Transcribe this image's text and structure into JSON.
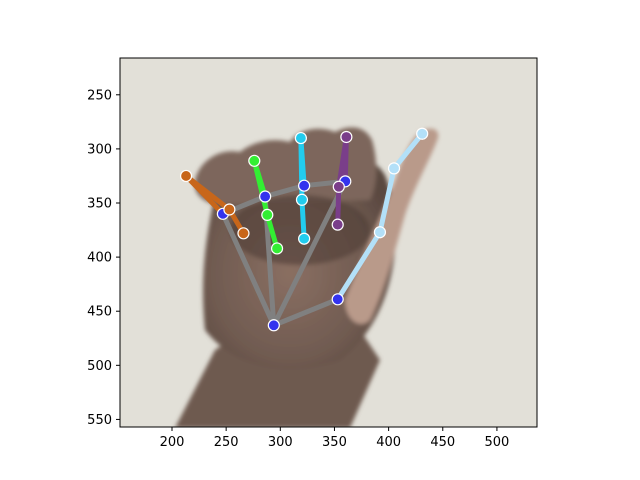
{
  "chart_data": {
    "type": "scatter",
    "title": "",
    "xlabel": "",
    "ylabel": "",
    "xlim": [
      152,
      537
    ],
    "ylim": [
      557,
      216
    ],
    "y_inverted": true,
    "xticks": [
      200,
      250,
      300,
      350,
      400,
      450,
      500
    ],
    "yticks": [
      250,
      300,
      350,
      400,
      450,
      500,
      550
    ],
    "background": "photograph of a hand",
    "keypoints": [
      {
        "x": 294,
        "y": 463,
        "color": "#3333ee"
      },
      {
        "x": 353,
        "y": 439,
        "color": "#3333ee"
      },
      {
        "x": 392,
        "y": 377,
        "color": "#b3e0f8"
      },
      {
        "x": 405,
        "y": 318,
        "color": "#b3e0f8"
      },
      {
        "x": 431,
        "y": 286,
        "color": "#b3e0f8"
      },
      {
        "x": 247,
        "y": 360,
        "color": "#3333ee"
      },
      {
        "x": 213,
        "y": 325,
        "color": "#c8661a"
      },
      {
        "x": 253,
        "y": 356,
        "color": "#c8661a"
      },
      {
        "x": 266,
        "y": 378,
        "color": "#c8661a"
      },
      {
        "x": 286,
        "y": 344,
        "color": "#3333ee"
      },
      {
        "x": 276,
        "y": 311,
        "color": "#33ee33"
      },
      {
        "x": 288,
        "y": 361,
        "color": "#33ee33"
      },
      {
        "x": 297,
        "y": 392,
        "color": "#33ee33"
      },
      {
        "x": 322,
        "y": 334,
        "color": "#3333ee"
      },
      {
        "x": 319,
        "y": 290,
        "color": "#22ccee"
      },
      {
        "x": 320,
        "y": 347,
        "color": "#22ccee"
      },
      {
        "x": 322,
        "y": 383,
        "color": "#22ccee"
      },
      {
        "x": 360,
        "y": 330,
        "color": "#3333ee"
      },
      {
        "x": 361,
        "y": 289,
        "color": "#7a3e8a"
      },
      {
        "x": 354,
        "y": 335,
        "color": "#7a3e8a"
      },
      {
        "x": 353,
        "y": 370,
        "color": "#7a3e8a"
      }
    ],
    "connections": [
      {
        "from": 0,
        "to": 5,
        "color": "#808080"
      },
      {
        "from": 0,
        "to": 9,
        "color": "#808080"
      },
      {
        "from": 0,
        "to": 17,
        "color": "#808080"
      },
      {
        "from": 5,
        "to": 9,
        "color": "#808080"
      },
      {
        "from": 9,
        "to": 13,
        "color": "#808080"
      },
      {
        "from": 13,
        "to": 17,
        "color": "#808080"
      },
      {
        "from": 0,
        "to": 1,
        "color": "#808080"
      },
      {
        "from": 1,
        "to": 2,
        "color": "#b3e0f8"
      },
      {
        "from": 2,
        "to": 3,
        "color": "#b3e0f8"
      },
      {
        "from": 3,
        "to": 4,
        "color": "#b3e0f8"
      },
      {
        "from": 5,
        "to": 6,
        "color": "#c8661a"
      },
      {
        "from": 6,
        "to": 7,
        "color": "#c8661a"
      },
      {
        "from": 7,
        "to": 8,
        "color": "#c8661a"
      },
      {
        "from": 9,
        "to": 10,
        "color": "#33ee33"
      },
      {
        "from": 10,
        "to": 11,
        "color": "#33ee33"
      },
      {
        "from": 11,
        "to": 12,
        "color": "#33ee33"
      },
      {
        "from": 13,
        "to": 14,
        "color": "#22ccee"
      },
      {
        "from": 14,
        "to": 15,
        "color": "#22ccee"
      },
      {
        "from": 15,
        "to": 16,
        "color": "#22ccee"
      },
      {
        "from": 17,
        "to": 18,
        "color": "#7a3e8a"
      },
      {
        "from": 18,
        "to": 19,
        "color": "#7a3e8a"
      },
      {
        "from": 19,
        "to": 20,
        "color": "#7a3e8a"
      }
    ]
  }
}
